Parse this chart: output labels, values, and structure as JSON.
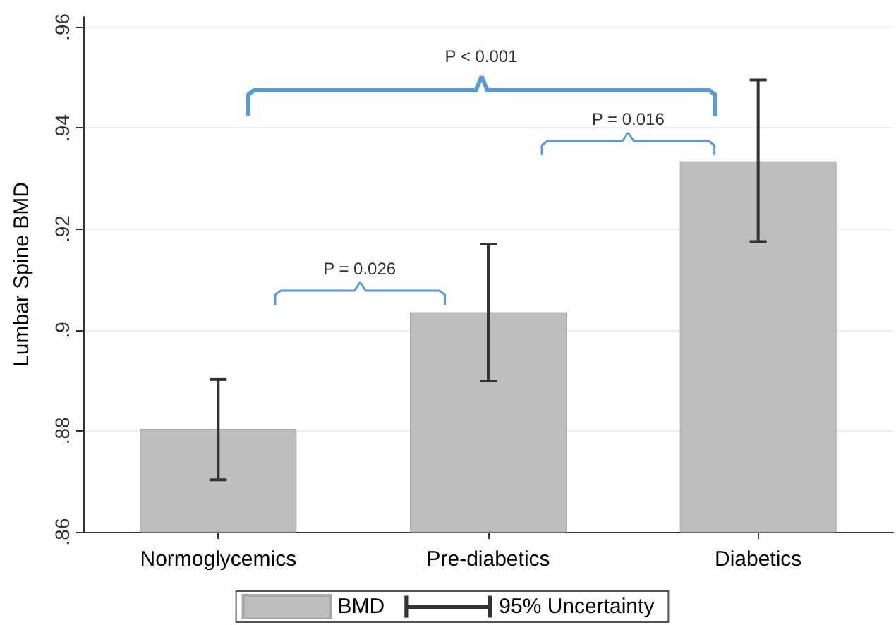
{
  "chart_data": {
    "type": "bar",
    "ylabel": "Lumbar Spine BMD",
    "categories": [
      "Normoglycemics",
      "Pre-diabetics",
      "Diabetics"
    ],
    "series": [
      {
        "name": "BMD",
        "color": "#bebebe",
        "values": [
          0.8804,
          0.9035,
          0.9334
        ],
        "errors": [
          [
            0.8703,
            0.8902
          ],
          [
            0.8899,
            0.917
          ],
          [
            0.9175,
            0.9495
          ]
        ]
      }
    ],
    "ylim": [
      0.86,
      0.962
    ],
    "yticks": [
      {
        "value": 0.86,
        "label": ".86"
      },
      {
        "value": 0.88,
        "label": ".88"
      },
      {
        "value": 0.9,
        "label": ".9"
      },
      {
        "value": 0.92,
        "label": ".92"
      },
      {
        "value": 0.94,
        "label": ".94"
      },
      {
        "value": 0.96,
        "label": ".96"
      }
    ],
    "grid": "y",
    "legend": "bottom",
    "annotations": [
      "P = 0.026",
      "P = 0.016",
      "P < 0.001",
      "95% Uncertainty"
    ]
  }
}
